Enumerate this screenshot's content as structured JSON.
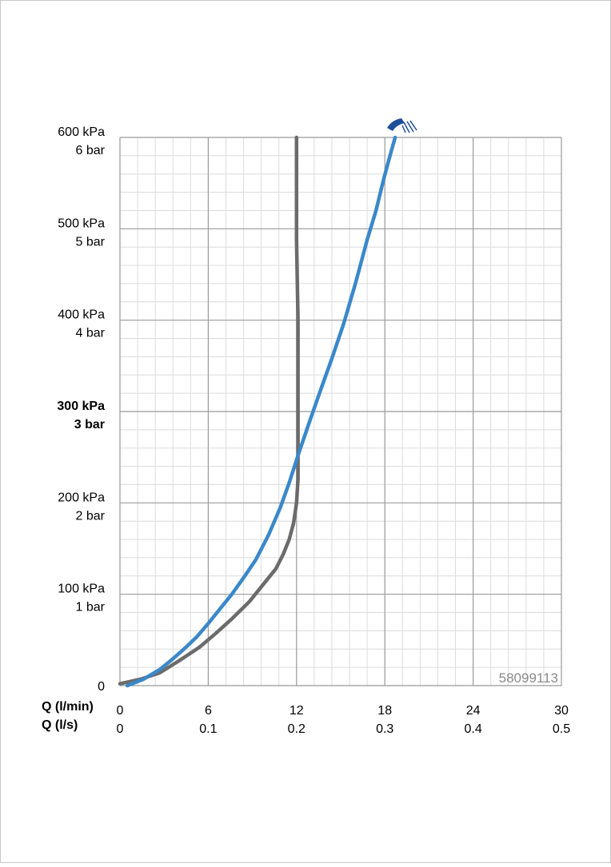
{
  "chart_data": {
    "type": "line",
    "xlabel": "Q (l/min)",
    "x2label": "Q (l/s)",
    "xlim": [
      0,
      30
    ],
    "xticks": [
      0,
      6,
      12,
      18,
      24,
      30
    ],
    "x2lim": [
      0,
      0.5
    ],
    "x2ticks": [
      0,
      0.1,
      0.2,
      0.3,
      0.4,
      0.5
    ],
    "ylim": [
      0,
      600
    ],
    "yticks": [
      0,
      {
        "value": 100,
        "label": "100 kPa"
      },
      {
        "value": 200,
        "label": "200 kPa"
      },
      {
        "value": 300,
        "label": "300 kPa"
      },
      {
        "value": 400,
        "label": "400 kPa"
      },
      {
        "value": 500,
        "label": "500 kPa"
      },
      {
        "value": 600,
        "label": "600 kPa"
      }
    ],
    "y2lim": [
      0,
      6
    ],
    "y2ticks": [
      {
        "value": 1,
        "label": "1 bar"
      },
      {
        "value": 2,
        "label": "2 bar"
      },
      {
        "value": 3,
        "label": "3 bar"
      },
      {
        "value": 4,
        "label": "4 bar"
      },
      {
        "value": 5,
        "label": "5 bar"
      },
      {
        "value": 6,
        "label": "6 bar"
      }
    ],
    "grid": true,
    "minor_grid": true,
    "annotation": "58099113",
    "series": [
      {
        "color": "#6b6b6b",
        "x": [
          0,
          1.4,
          2.7,
          4.0,
          5.4,
          6.5,
          7.6,
          8.8,
          9.8,
          10.6,
          11.1,
          11.5,
          11.8,
          12.0,
          12.1,
          12.1,
          12.1,
          12.0,
          12.0
        ],
        "values": [
          2,
          7,
          14,
          27,
          42,
          57,
          73,
          92,
          112,
          128,
          144,
          160,
          178,
          200,
          226,
          313,
          400,
          488,
          600
        ]
      },
      {
        "color": "#3a88c9",
        "x": [
          0.5,
          1.6,
          2.7,
          3.5,
          4.35,
          5.2,
          6.0,
          6.8,
          7.6,
          8.4,
          9.24,
          10.1,
          10.9,
          11.5,
          12.1,
          12.8,
          13.6,
          14.4,
          15.2,
          16.0,
          16.8,
          17.4,
          17.9,
          18.3,
          18.7
        ],
        "values": [
          0,
          7,
          17.5,
          28,
          40,
          53,
          68,
          84,
          100,
          118,
          138,
          165,
          195,
          222,
          252,
          285,
          322,
          358,
          396,
          440,
          488,
          520,
          553,
          577,
          600
        ]
      }
    ]
  }
}
